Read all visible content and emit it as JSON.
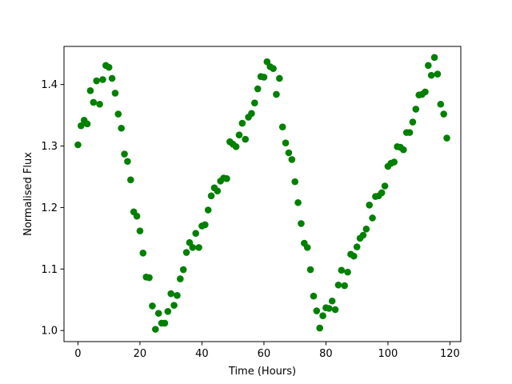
{
  "chart_data": {
    "type": "scatter",
    "xlabel": "Time (Hours)",
    "ylabel": "Normalised Flux",
    "xlim": [
      -4.5,
      123.5
    ],
    "ylim": [
      0.982,
      1.462
    ],
    "xticks": [
      0,
      20,
      40,
      60,
      80,
      100,
      120
    ],
    "yticks": [
      1.0,
      1.1,
      1.2,
      1.3,
      1.4
    ],
    "xtick_labels": [
      "0",
      "20",
      "40",
      "60",
      "80",
      "100",
      "120"
    ],
    "ytick_labels": [
      "1.0",
      "1.1",
      "1.2",
      "1.3",
      "1.4"
    ],
    "grid": false,
    "marker_color": "#008000",
    "series": [
      {
        "x": [
          0,
          1,
          2,
          3,
          4,
          5,
          6,
          7,
          8,
          9,
          10,
          11,
          12,
          13,
          14,
          15,
          16,
          17,
          18,
          19,
          20,
          21,
          22,
          23,
          24,
          25,
          26,
          27,
          28,
          29,
          30,
          31,
          32,
          33,
          34,
          35,
          36,
          37,
          38,
          39,
          40,
          41,
          42,
          43,
          44,
          45,
          46,
          47,
          48,
          49,
          50,
          51,
          52,
          53,
          54,
          55,
          56,
          57,
          58,
          59,
          60,
          61,
          62,
          63,
          64,
          65,
          66,
          67,
          68,
          69,
          70,
          71,
          72,
          73,
          74,
          75,
          76,
          77,
          78,
          79,
          80,
          81,
          82,
          83,
          84,
          85,
          86,
          87,
          88,
          89,
          90,
          91,
          92,
          93,
          94,
          95,
          96,
          97,
          98,
          99,
          100,
          101,
          102,
          103,
          104,
          105,
          106,
          107,
          108,
          109,
          110,
          111,
          112,
          113,
          114,
          115,
          116,
          117,
          118,
          119
        ],
        "y": [
          1.302,
          1.333,
          1.342,
          1.336,
          1.39,
          1.371,
          1.406,
          1.368,
          1.408,
          1.431,
          1.428,
          1.41,
          1.386,
          1.352,
          1.329,
          1.287,
          1.275,
          1.245,
          1.193,
          1.186,
          1.162,
          1.126,
          1.087,
          1.086,
          1.04,
          1.002,
          1.028,
          1.012,
          1.012,
          1.031,
          1.06,
          1.041,
          1.057,
          1.084,
          1.099,
          1.127,
          1.143,
          1.135,
          1.158,
          1.135,
          1.17,
          1.172,
          1.196,
          1.219,
          1.232,
          1.227,
          1.243,
          1.248,
          1.247,
          1.307,
          1.303,
          1.299,
          1.318,
          1.337,
          1.311,
          1.347,
          1.353,
          1.37,
          1.393,
          1.413,
          1.412,
          1.437,
          1.429,
          1.426,
          1.384,
          1.41,
          1.331,
          1.305,
          1.289,
          1.278,
          1.242,
          1.208,
          1.174,
          1.142,
          1.135,
          1.099,
          1.056,
          1.032,
          1.004,
          1.024,
          1.037,
          1.036,
          1.048,
          1.034,
          1.074,
          1.098,
          1.073,
          1.095,
          1.124,
          1.121,
          1.136,
          1.15,
          1.155,
          1.165,
          1.204,
          1.183,
          1.218,
          1.219,
          1.224,
          1.235,
          1.267,
          1.272,
          1.274,
          1.299,
          1.298,
          1.294,
          1.322,
          1.322,
          1.339,
          1.36,
          1.383,
          1.384,
          1.388,
          1.431,
          1.415,
          1.444,
          1.417,
          1.368,
          1.352,
          1.313
        ]
      }
    ]
  }
}
